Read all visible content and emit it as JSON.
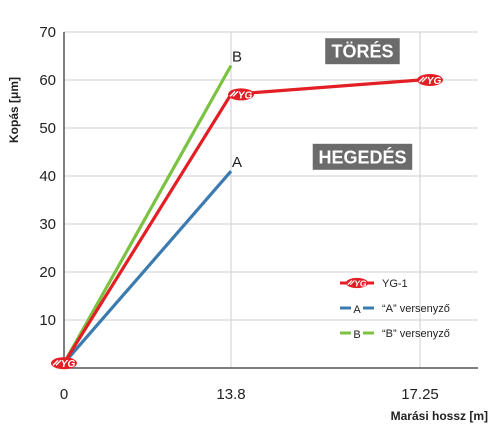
{
  "chart_data": {
    "type": "line",
    "xlabel": "Marási hossz [m]",
    "ylabel": "Kopás [μm]",
    "x_ticks": [
      {
        "value": 0,
        "label": "0"
      },
      {
        "value": 13.8,
        "label": "13.8"
      },
      {
        "value": 17.25,
        "label": "17.25"
      }
    ],
    "ylim": [
      0,
      70
    ],
    "y_ticks": [
      10,
      20,
      30,
      40,
      50,
      60,
      70
    ],
    "grid": true,
    "legend_position": "bottom-right",
    "series": [
      {
        "name": "YG-1",
        "color": "#e31e24",
        "marker": "yg1-logo",
        "points": [
          [
            0,
            1
          ],
          [
            13.8,
            57
          ],
          [
            17.25,
            60
          ]
        ]
      },
      {
        "name": "“A” versenyző",
        "color": "#3b7bb0",
        "marker": "none",
        "end_label": "A",
        "points": [
          [
            0,
            1
          ],
          [
            13.8,
            41
          ]
        ]
      },
      {
        "name": "“B” versenyző",
        "color": "#7cc242",
        "marker": "none",
        "end_label": "B",
        "points": [
          [
            0,
            1
          ],
          [
            13.8,
            63
          ]
        ]
      }
    ],
    "annotations": [
      {
        "text": "TÖRÉS",
        "x": 16.2,
        "y": 66
      },
      {
        "text": "HEGEDÉS",
        "x": 16.2,
        "y": 44
      }
    ]
  },
  "logo_text": "YG",
  "colors": {
    "badge_bg": "#6b6b6b"
  }
}
